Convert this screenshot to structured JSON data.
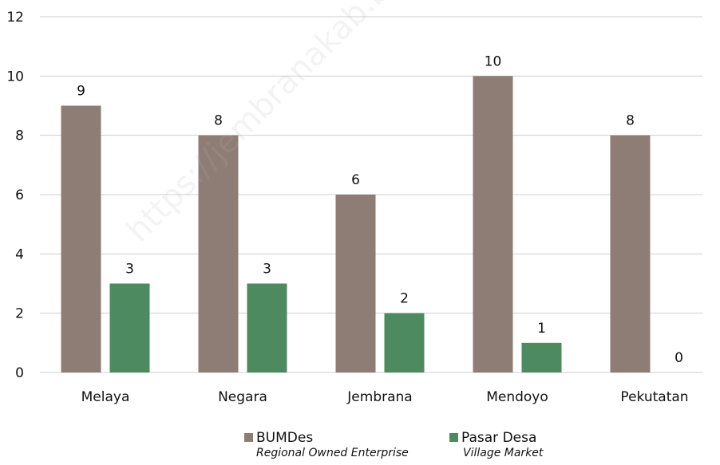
{
  "chart_data": {
    "type": "bar",
    "categories": [
      "Melaya",
      "Negara",
      "Jembrana",
      "Mendoyo",
      "Pekutatan"
    ],
    "series": [
      {
        "name": "BUMDes",
        "subtitle": "Regional Owned Enterprise",
        "color": "#8E7D74",
        "values": [
          9,
          8,
          6,
          10,
          8
        ]
      },
      {
        "name": "Pasar Desa",
        "subtitle": "Village Market",
        "color": "#4E8A5F",
        "values": [
          3,
          3,
          2,
          1,
          0
        ]
      }
    ],
    "ylim": [
      0,
      12
    ],
    "yticks": [
      0,
      2,
      4,
      6,
      8,
      10,
      12
    ],
    "grid": true,
    "legend_position": "bottom"
  },
  "watermark": "https://jembranakab.bps.go.id"
}
